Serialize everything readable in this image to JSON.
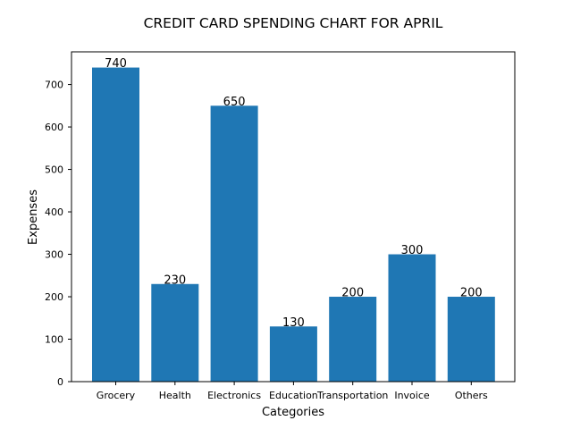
{
  "chart_data": {
    "type": "bar",
    "title": "CREDIT CARD SPENDING CHART FOR APRIL",
    "xlabel": "Categories",
    "ylabel": "Expenses",
    "categories": [
      "Grocery",
      "Health",
      "Electronics",
      "Education",
      "Transportation",
      "Invoice",
      "Others"
    ],
    "values": [
      740,
      230,
      650,
      130,
      200,
      300,
      200
    ],
    "data_labels": [
      "740",
      "230",
      "650",
      "130",
      "200",
      "300",
      "200"
    ],
    "ylim": [
      0,
      777
    ],
    "yticks": [
      0,
      100,
      200,
      300,
      400,
      500,
      600,
      700
    ],
    "grid": false,
    "bar_color": "#1f77b4"
  }
}
